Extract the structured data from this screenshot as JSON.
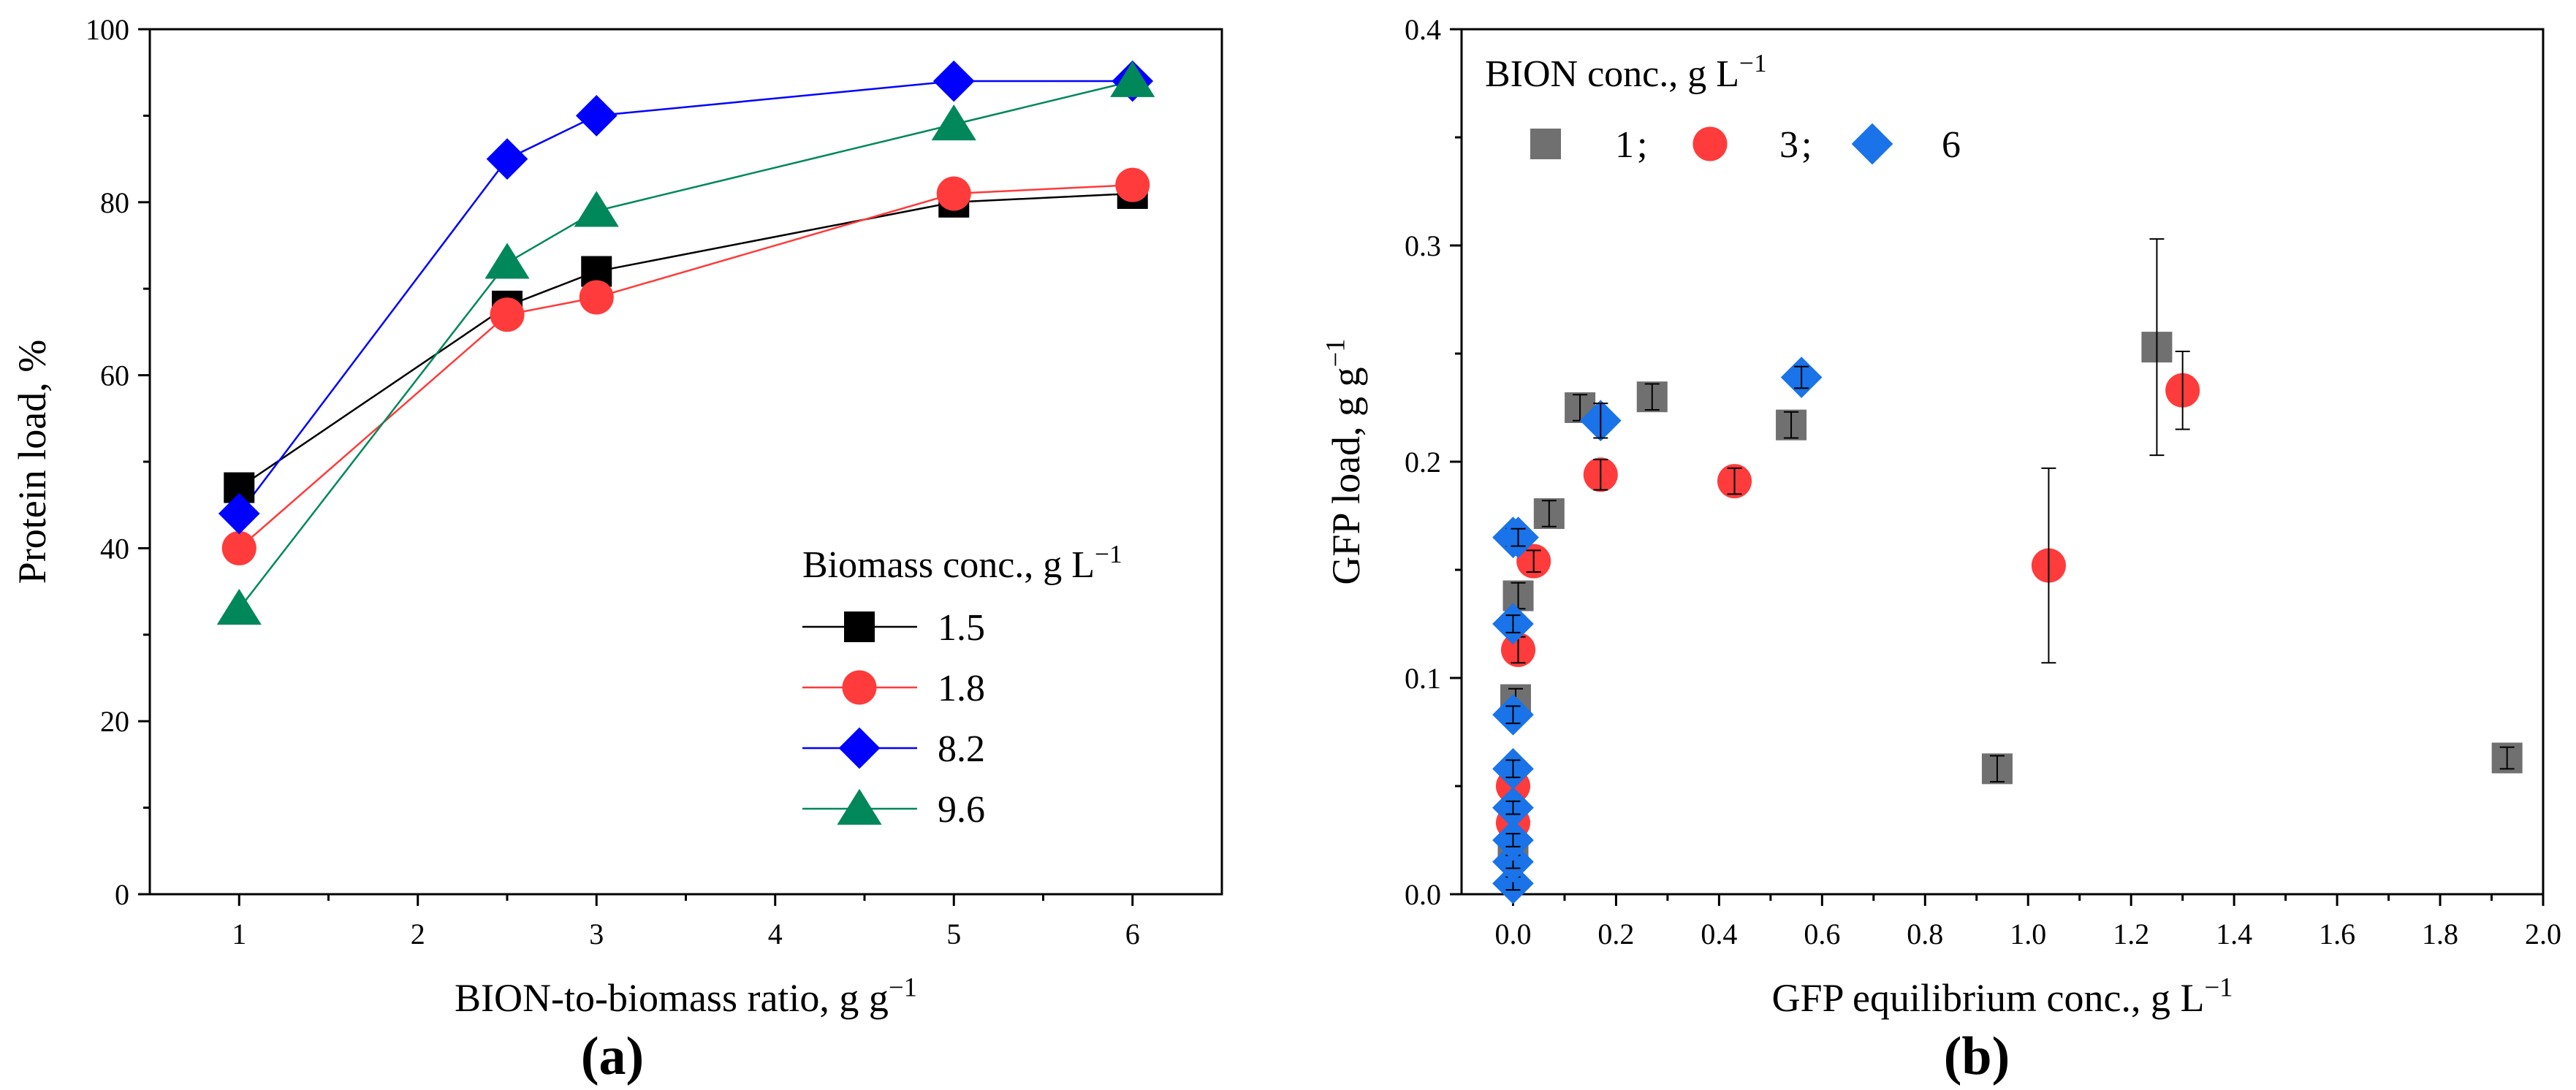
{
  "colors": {
    "black": "#000000",
    "red": "#ff3b3b",
    "blue": "#0000ff",
    "green": "#00875a",
    "gray": "#707070",
    "lightblue": "#1a73e8",
    "errorbar": "#000000"
  },
  "chart_data": [
    {
      "panel_label": "(a)",
      "type": "line",
      "xlabel_main": "BION-to-biomass ratio, g g",
      "xlabel_sup": "−1",
      "ylabel": "Protein load, %",
      "xlim": [
        0.5,
        6.5
      ],
      "ylim": [
        0,
        100
      ],
      "xticks": [
        1,
        2,
        3,
        4,
        5,
        6
      ],
      "yticks": [
        0,
        20,
        40,
        60,
        80,
        100
      ],
      "grid": false,
      "legend": {
        "position": "bottom-right",
        "title_main": "Biomass conc., g L",
        "title_sup": "−1"
      },
      "series": [
        {
          "name": "1.5",
          "marker": "square",
          "color_key": "black",
          "x": [
            1,
            2.5,
            3,
            5,
            6
          ],
          "y": [
            47,
            68,
            72,
            80,
            81
          ]
        },
        {
          "name": "1.8",
          "marker": "circle",
          "color_key": "red",
          "x": [
            1,
            2.5,
            3,
            5,
            6
          ],
          "y": [
            40,
            67,
            69,
            81,
            82
          ]
        },
        {
          "name": "8.2",
          "marker": "diamond",
          "color_key": "blue",
          "x": [
            1,
            2.5,
            3,
            5,
            6
          ],
          "y": [
            44,
            85,
            90,
            94,
            94
          ]
        },
        {
          "name": "9.6",
          "marker": "triangle",
          "color_key": "green",
          "x": [
            1,
            2.5,
            3,
            5,
            6
          ],
          "y": [
            33,
            73,
            79,
            89,
            94
          ]
        }
      ]
    },
    {
      "panel_label": "(b)",
      "type": "scatter",
      "xlabel_main": "GFP equilibrium conc., g L",
      "xlabel_sup": "−1",
      "ylabel_main": "GFP load, g g",
      "ylabel_sup": "−1",
      "xlim": [
        -0.1,
        2.0
      ],
      "ylim": [
        0,
        0.4
      ],
      "xticks": [
        "0.0",
        "0.2",
        "0.4",
        "0.6",
        "0.8",
        "1.0",
        "1.2",
        "1.4",
        "1.6",
        "1.8",
        "2.0"
      ],
      "yticks": [
        "0.0",
        "0.1",
        "0.2",
        "0.3",
        "0.4"
      ],
      "grid": false,
      "legend": {
        "position": "top-left",
        "title_main": "BION conc., g L",
        "title_sup": "−1",
        "separator": ";"
      },
      "series": [
        {
          "name": "1",
          "marker": "square",
          "color_key": "gray",
          "x": [
            0.0,
            0.005,
            0.01,
            0.07,
            0.13,
            0.27,
            0.54,
            0.94,
            1.25,
            1.93
          ],
          "y": [
            0.02,
            0.09,
            0.138,
            0.176,
            0.225,
            0.23,
            0.217,
            0.058,
            0.253,
            0.063
          ],
          "err": [
            0.004,
            0.005,
            0.006,
            0.006,
            0.006,
            0.006,
            0.006,
            0.006,
            0.05,
            0.005
          ]
        },
        {
          "name": "3",
          "marker": "circle",
          "color_key": "red",
          "x": [
            0.0,
            0.0,
            0.01,
            0.04,
            0.17,
            0.43,
            1.04,
            1.3
          ],
          "y": [
            0.033,
            0.05,
            0.113,
            0.154,
            0.194,
            0.191,
            0.152,
            0.233
          ],
          "err": [
            0.004,
            0.004,
            0.006,
            0.005,
            0.007,
            0.006,
            0.045,
            0.018
          ]
        },
        {
          "name": "6",
          "marker": "diamond",
          "color_key": "lightblue",
          "x": [
            0.0,
            0.0,
            0.0,
            0.0,
            0.0,
            0.0,
            0.0,
            0.0,
            0.01,
            0.17,
            0.56
          ],
          "y": [
            0.005,
            0.015,
            0.025,
            0.04,
            0.058,
            0.083,
            0.125,
            0.165,
            0.165,
            0.219,
            0.239
          ],
          "err": [
            0.003,
            0.003,
            0.003,
            0.003,
            0.004,
            0.004,
            0.004,
            0.004,
            0.004,
            0.008,
            0.005
          ]
        }
      ]
    }
  ]
}
